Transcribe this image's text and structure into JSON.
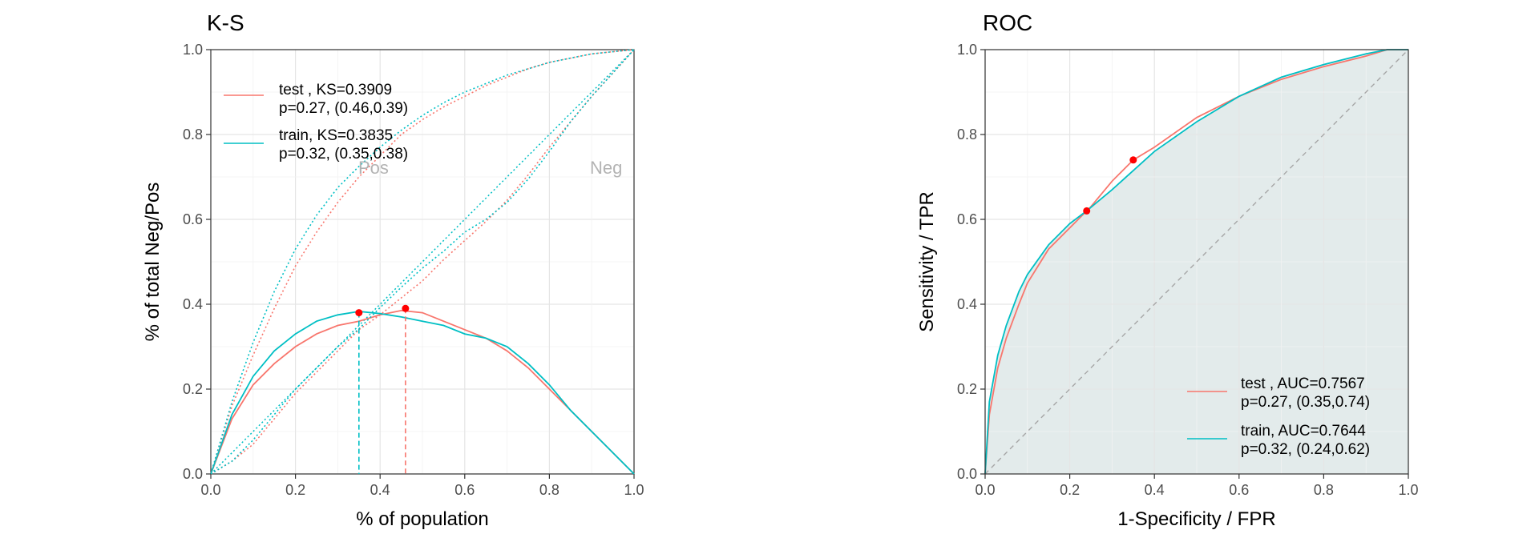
{
  "chart_data": [
    {
      "type": "line",
      "title": "K-S",
      "xlabel": "% of population",
      "ylabel": "% of total Neg/Pos",
      "xlim": [
        0,
        1
      ],
      "ylim": [
        0,
        1
      ],
      "xticks": [
        "0.0",
        "0.2",
        "0.4",
        "0.6",
        "0.8",
        "1.0"
      ],
      "yticks": [
        "0.0",
        "0.2",
        "0.4",
        "0.6",
        "0.8",
        "1.0"
      ],
      "grid": true,
      "legend_position": "top-left",
      "legend": [
        {
          "line1": "test , KS=0.3909",
          "line2": "p=0.27, (0.46,0.39)",
          "color": "#F8766D"
        },
        {
          "line1": "train, KS=0.3835",
          "line2": "p=0.32, (0.35,0.38)",
          "color": "#00BFC4"
        }
      ],
      "annotations": [
        {
          "text": "Pos",
          "x": 0.4,
          "y": 0.72
        },
        {
          "text": "Neg",
          "x": 0.95,
          "y": 0.72
        }
      ],
      "ks_points": [
        {
          "series": "test",
          "x": 0.46,
          "y": 0.39,
          "color": "#F8766D"
        },
        {
          "series": "train",
          "x": 0.35,
          "y": 0.38,
          "color": "#00BFC4"
        }
      ],
      "x": [
        0,
        0.05,
        0.1,
        0.15,
        0.2,
        0.25,
        0.3,
        0.35,
        0.4,
        0.45,
        0.5,
        0.55,
        0.6,
        0.65,
        0.7,
        0.75,
        0.8,
        0.85,
        0.9,
        0.95,
        1.0
      ],
      "series": [
        {
          "name": "test",
          "kind": "ks",
          "color": "#F8766D",
          "values": [
            0,
            0.13,
            0.21,
            0.26,
            0.3,
            0.33,
            0.35,
            0.36,
            0.375,
            0.385,
            0.38,
            0.36,
            0.34,
            0.32,
            0.29,
            0.25,
            0.2,
            0.15,
            0.1,
            0.05,
            0
          ]
        },
        {
          "name": "train",
          "kind": "ks",
          "color": "#00BFC4",
          "values": [
            0,
            0.14,
            0.23,
            0.29,
            0.33,
            0.36,
            0.375,
            0.383,
            0.378,
            0.37,
            0.36,
            0.35,
            0.33,
            0.32,
            0.3,
            0.26,
            0.21,
            0.15,
            0.1,
            0.05,
            0
          ]
        },
        {
          "name": "test Pos",
          "kind": "cum",
          "color": "#F8766D",
          "values": [
            0,
            0.16,
            0.28,
            0.39,
            0.49,
            0.57,
            0.64,
            0.7,
            0.75,
            0.8,
            0.835,
            0.865,
            0.89,
            0.915,
            0.935,
            0.955,
            0.97,
            0.98,
            0.99,
            0.995,
            1.0
          ]
        },
        {
          "name": "train Pos",
          "kind": "cum",
          "color": "#00BFC4",
          "values": [
            0,
            0.17,
            0.31,
            0.43,
            0.53,
            0.61,
            0.675,
            0.725,
            0.77,
            0.81,
            0.845,
            0.875,
            0.9,
            0.92,
            0.94,
            0.955,
            0.97,
            0.98,
            0.99,
            0.995,
            1.0
          ]
        },
        {
          "name": "test Neg",
          "kind": "cum",
          "color": "#F8766D",
          "values": [
            0,
            0.03,
            0.07,
            0.13,
            0.19,
            0.24,
            0.29,
            0.34,
            0.375,
            0.415,
            0.455,
            0.505,
            0.55,
            0.595,
            0.645,
            0.705,
            0.77,
            0.83,
            0.89,
            0.945,
            1.0
          ]
        },
        {
          "name": "train Neg",
          "kind": "cum",
          "color": "#00BFC4",
          "values": [
            0,
            0.03,
            0.08,
            0.14,
            0.2,
            0.25,
            0.3,
            0.342,
            0.392,
            0.44,
            0.485,
            0.525,
            0.57,
            0.6,
            0.64,
            0.695,
            0.76,
            0.83,
            0.89,
            0.945,
            1.0
          ]
        }
      ]
    },
    {
      "type": "line",
      "title": "ROC",
      "xlabel": "1-Specificity / FPR",
      "ylabel": "Sensitivity / TPR",
      "xlim": [
        0,
        1
      ],
      "ylim": [
        0,
        1
      ],
      "xticks": [
        "0.0",
        "0.2",
        "0.4",
        "0.6",
        "0.8",
        "1.0"
      ],
      "yticks": [
        "0.0",
        "0.2",
        "0.4",
        "0.6",
        "0.8",
        "1.0"
      ],
      "grid": true,
      "legend_position": "bottom-right",
      "legend": [
        {
          "line1": "test , AUC=0.7567",
          "line2": "p=0.27, (0.35,0.74)",
          "color": "#F8766D"
        },
        {
          "line1": "train, AUC=0.7644",
          "line2": "p=0.32, (0.24,0.62)",
          "color": "#00BFC4"
        }
      ],
      "points": [
        {
          "series": "test",
          "x": 0.35,
          "y": 0.74
        },
        {
          "series": "train",
          "x": 0.24,
          "y": 0.62
        }
      ],
      "series": [
        {
          "name": "test",
          "color": "#F8766D",
          "x": [
            0,
            0.01,
            0.03,
            0.05,
            0.08,
            0.1,
            0.15,
            0.2,
            0.25,
            0.3,
            0.35,
            0.4,
            0.5,
            0.6,
            0.7,
            0.8,
            0.9,
            0.95,
            1.0
          ],
          "y": [
            0,
            0.14,
            0.25,
            0.32,
            0.4,
            0.45,
            0.53,
            0.58,
            0.63,
            0.69,
            0.74,
            0.77,
            0.84,
            0.89,
            0.93,
            0.96,
            0.985,
            1.0,
            1.0
          ]
        },
        {
          "name": "train",
          "color": "#00BFC4",
          "x": [
            0,
            0.01,
            0.03,
            0.05,
            0.08,
            0.1,
            0.15,
            0.2,
            0.24,
            0.3,
            0.35,
            0.4,
            0.5,
            0.6,
            0.7,
            0.8,
            0.9,
            0.95,
            1.0
          ],
          "y": [
            0,
            0.17,
            0.28,
            0.35,
            0.43,
            0.47,
            0.54,
            0.59,
            0.62,
            0.67,
            0.715,
            0.76,
            0.83,
            0.89,
            0.935,
            0.965,
            0.99,
            1.0,
            1.0
          ]
        }
      ],
      "shading": "area under curve",
      "shade_color": "#E3EBEB",
      "diagonal": {
        "style": "dashed",
        "color": "#A6A6A6"
      }
    }
  ]
}
